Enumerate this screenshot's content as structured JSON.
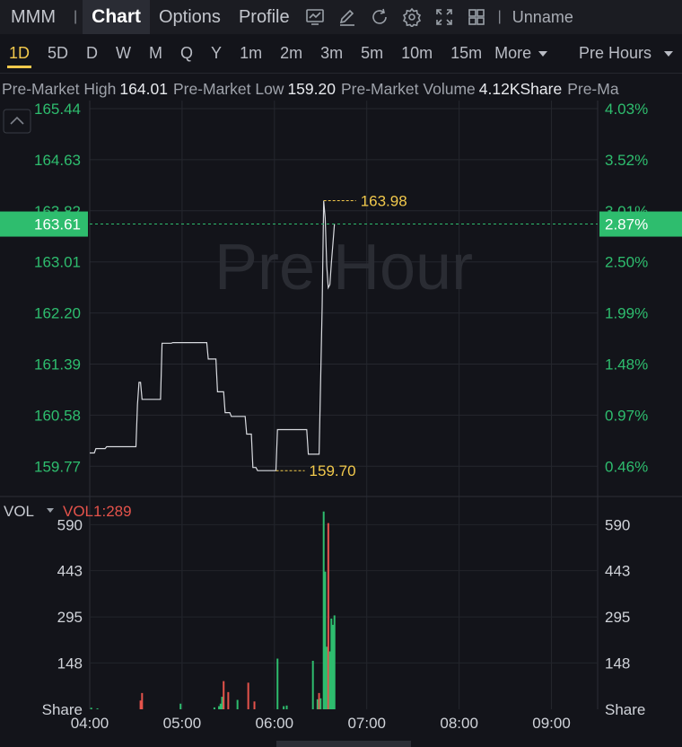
{
  "header": {
    "ticker": "MMM",
    "tabs": [
      {
        "label": "Chart",
        "active": true
      },
      {
        "label": "Options",
        "active": false
      },
      {
        "label": "Profile",
        "active": false
      }
    ],
    "icons": [
      "line-chart-icon",
      "draw-pencil-icon",
      "refresh-icon",
      "settings-gear-icon",
      "fullscreen-icon",
      "grid-layout-icon"
    ],
    "account": "Unname"
  },
  "periods": [
    {
      "label": "1D",
      "active": true
    },
    {
      "label": "5D"
    },
    {
      "label": "D"
    },
    {
      "label": "W"
    },
    {
      "label": "M"
    },
    {
      "label": "Q"
    },
    {
      "label": "Y"
    },
    {
      "label": "1m"
    },
    {
      "label": "2m"
    },
    {
      "label": "3m"
    },
    {
      "label": "5m"
    },
    {
      "label": "10m"
    },
    {
      "label": "15m"
    }
  ],
  "more_label": "More",
  "session_label": "Pre Hours",
  "premarket": {
    "high_label": "Pre-Market High",
    "high": "164.01",
    "low_label": "Pre-Market Low",
    "low": "159.20",
    "volume_label": "Pre-Market Volume",
    "volume": "4.12KShare",
    "trailing_label": "Pre-Ma"
  },
  "colors": {
    "up": "#2ebd6e",
    "down": "#e5534b",
    "price_line": "#d8dadf",
    "marker": "#f2c94c",
    "axis_text": "#2ebd6e",
    "vol_label": "#e5534b"
  },
  "chart_data": {
    "type": "line",
    "watermark": "Pre Hour",
    "price_axis": {
      "ylim": [
        159.29,
        165.44
      ],
      "ticks": [
        "165.44",
        "164.63",
        "163.82",
        "163.01",
        "162.20",
        "161.39",
        "160.58",
        "159.77"
      ]
    },
    "percent_axis": {
      "ticks": [
        "4.03%",
        "3.52%",
        "3.01%",
        "2.50%",
        "1.99%",
        "1.48%",
        "0.97%",
        "0.46%"
      ]
    },
    "current_price": "163.61",
    "current_pct": "2.87%",
    "high_marker": "163.98",
    "low_marker": "159.70",
    "x_ticks": [
      "04:00",
      "05:00",
      "06:00",
      "07:00",
      "08:00",
      "09:00"
    ],
    "time_range_minutes": [
      0,
      330
    ],
    "price_series": [
      [
        0,
        159.98
      ],
      [
        3,
        159.98
      ],
      [
        4,
        160.05
      ],
      [
        10,
        160.05
      ],
      [
        11,
        160.08
      ],
      [
        30,
        160.08
      ],
      [
        31,
        160.75
      ],
      [
        32,
        161.1
      ],
      [
        33,
        161.1
      ],
      [
        34,
        160.83
      ],
      [
        46,
        160.83
      ],
      [
        47,
        161.72
      ],
      [
        53,
        161.72
      ],
      [
        54,
        161.73
      ],
      [
        76,
        161.73
      ],
      [
        77,
        161.47
      ],
      [
        82,
        161.47
      ],
      [
        83,
        160.95
      ],
      [
        87,
        160.95
      ],
      [
        88,
        160.62
      ],
      [
        91,
        160.62
      ],
      [
        92,
        160.56
      ],
      [
        101,
        160.56
      ],
      [
        102,
        160.28
      ],
      [
        105,
        160.28
      ],
      [
        106,
        159.75
      ],
      [
        108,
        159.75
      ],
      [
        109,
        159.7
      ],
      [
        121,
        159.7
      ],
      [
        122,
        160.35
      ],
      [
        141,
        160.35
      ],
      [
        142,
        159.96
      ],
      [
        149,
        159.96
      ],
      [
        151,
        162.3
      ],
      [
        152,
        163.98
      ],
      [
        153,
        163.7
      ],
      [
        154,
        162.95
      ],
      [
        155,
        162.6
      ],
      [
        156,
        162.65
      ],
      [
        157,
        163.0
      ],
      [
        158,
        163.3
      ],
      [
        159,
        163.61
      ]
    ],
    "volume": {
      "label": "VOL",
      "indicator": "VOL1:289",
      "ylim": [
        0,
        680
      ],
      "ticks": [
        "590",
        "443",
        "295",
        "148"
      ],
      "unit_label": "Share",
      "bars": [
        [
          1,
          5,
          "up"
        ],
        [
          5,
          3,
          "up"
        ],
        [
          33,
          28,
          "down"
        ],
        [
          34,
          52,
          "down"
        ],
        [
          59,
          18,
          "up"
        ],
        [
          81,
          6,
          "up"
        ],
        [
          84,
          10,
          "up"
        ],
        [
          85,
          18,
          "up"
        ],
        [
          86,
          40,
          "up"
        ],
        [
          87,
          90,
          "down"
        ],
        [
          90,
          55,
          "down"
        ],
        [
          96,
          30,
          "up"
        ],
        [
          103,
          85,
          "down"
        ],
        [
          107,
          25,
          "down"
        ],
        [
          122,
          162,
          "up"
        ],
        [
          126,
          10,
          "up"
        ],
        [
          128,
          12,
          "up"
        ],
        [
          145,
          155,
          "up"
        ],
        [
          148,
          32,
          "up"
        ],
        [
          149,
          52,
          "down"
        ],
        [
          150,
          35,
          "up"
        ],
        [
          152,
          632,
          "up"
        ],
        [
          153,
          440,
          "up"
        ],
        [
          154,
          200,
          "up"
        ],
        [
          155,
          595,
          "down"
        ],
        [
          156,
          185,
          "up"
        ],
        [
          157,
          290,
          "up"
        ],
        [
          158,
          270,
          "up"
        ],
        [
          159,
          300,
          "up"
        ]
      ]
    }
  }
}
